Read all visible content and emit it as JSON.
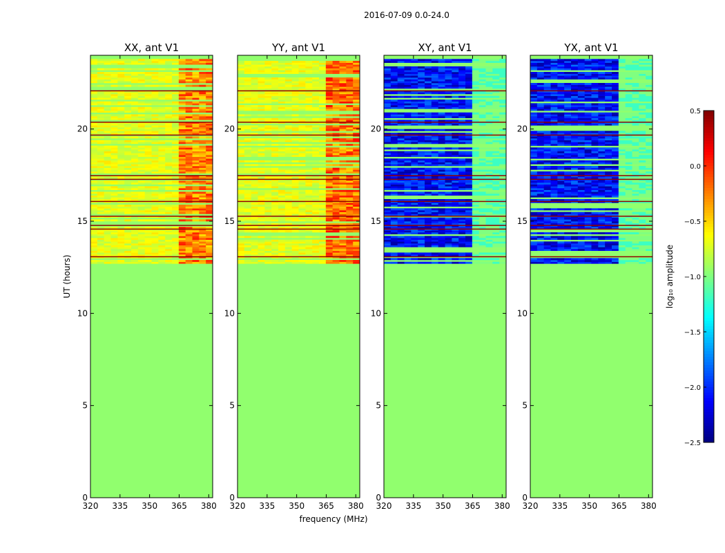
{
  "figure_title": "2016-07-09 0.0-24.0",
  "chart_data": {
    "type": "heatmap",
    "suptitle": "2016-07-09 0.0-24.0",
    "xlabel": "frequency (MHz)",
    "ylabel": "UT (hours)",
    "xlim": [
      320,
      382
    ],
    "ylim": [
      0,
      24
    ],
    "x_ticks": [
      320,
      335,
      350,
      365,
      380
    ],
    "y_ticks": [
      0,
      5,
      10,
      15,
      20
    ],
    "baseline_value": -0.95,
    "data_start_hour": 12.6,
    "data_end_hour": 23.8,
    "bright_band_mhz": [
      363,
      382
    ],
    "flagged_hours": [
      22.1,
      20.4,
      19.7,
      17.5,
      17.3,
      16.1,
      15.3,
      14.8,
      14.6,
      13.1
    ],
    "panels": [
      {
        "title": "XX, ant V1",
        "kind": "auto",
        "base_level": -0.7,
        "bright_level": -0.25
      },
      {
        "title": "YY, ant V1",
        "kind": "auto",
        "base_level": -0.7,
        "bright_level": -0.2
      },
      {
        "title": "XY, ant V1",
        "kind": "cross",
        "base_level": -2.1,
        "bright_level": -0.9
      },
      {
        "title": "YX, ant V1",
        "kind": "cross",
        "base_level": -2.1,
        "bright_level": -0.9
      }
    ],
    "colorbar": {
      "label": "log₁₀ amplitude",
      "range": [
        -2.5,
        0.5
      ],
      "ticks": [
        0.5,
        0.0,
        -0.5,
        -1.0,
        -1.5,
        -2.0,
        -2.5
      ],
      "tick_labels": [
        "0.5",
        "0.0",
        "−0.5",
        "−1.0",
        "−1.5",
        "−2.0",
        "−2.5"
      ],
      "colormap": "jet"
    }
  }
}
